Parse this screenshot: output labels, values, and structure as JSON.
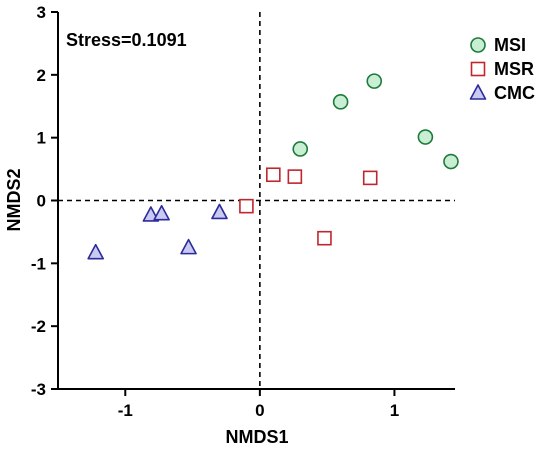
{
  "chart_data": {
    "type": "scatter",
    "xlabel": "NMDS1",
    "ylabel": "NMDS2",
    "xlim": [
      -1.5,
      1.45
    ],
    "ylim": [
      -3,
      3
    ],
    "x_ticks": [
      -1,
      0,
      1
    ],
    "y_ticks": [
      -3,
      -2,
      -1,
      0,
      1,
      2,
      3
    ],
    "x_tick_labels": [
      "-1",
      "0",
      "1"
    ],
    "y_tick_labels": [
      "-3",
      "-2",
      "-1",
      "0",
      "1",
      "2",
      "3"
    ],
    "annotation": "Stress=0.1091",
    "reference_lines": {
      "x": 0,
      "y": 0,
      "style": "dashed"
    },
    "grid": false,
    "legend_position": "top-right-outside",
    "series": [
      {
        "name": "MSI",
        "marker": "circle",
        "fill": "#c8efd4",
        "stroke": "#1e7a3a",
        "points": [
          [
            0.3,
            0.82
          ],
          [
            0.6,
            1.57
          ],
          [
            0.85,
            1.9
          ],
          [
            1.23,
            1.01
          ],
          [
            1.42,
            0.62
          ]
        ]
      },
      {
        "name": "MSR",
        "marker": "square",
        "fill": "#ffffff",
        "stroke": "#c0262d",
        "points": [
          [
            0.1,
            0.41
          ],
          [
            0.26,
            0.38
          ],
          [
            0.82,
            0.36
          ],
          [
            0.48,
            -0.6
          ],
          [
            -0.1,
            -0.09
          ]
        ]
      },
      {
        "name": "CMC",
        "marker": "triangle",
        "fill": "#c9c9f2",
        "stroke": "#2b2b9a",
        "points": [
          [
            -1.22,
            -0.83
          ],
          [
            -0.81,
            -0.23
          ],
          [
            -0.73,
            -0.21
          ],
          [
            -0.53,
            -0.75
          ],
          [
            -0.3,
            -0.19
          ]
        ]
      }
    ]
  }
}
